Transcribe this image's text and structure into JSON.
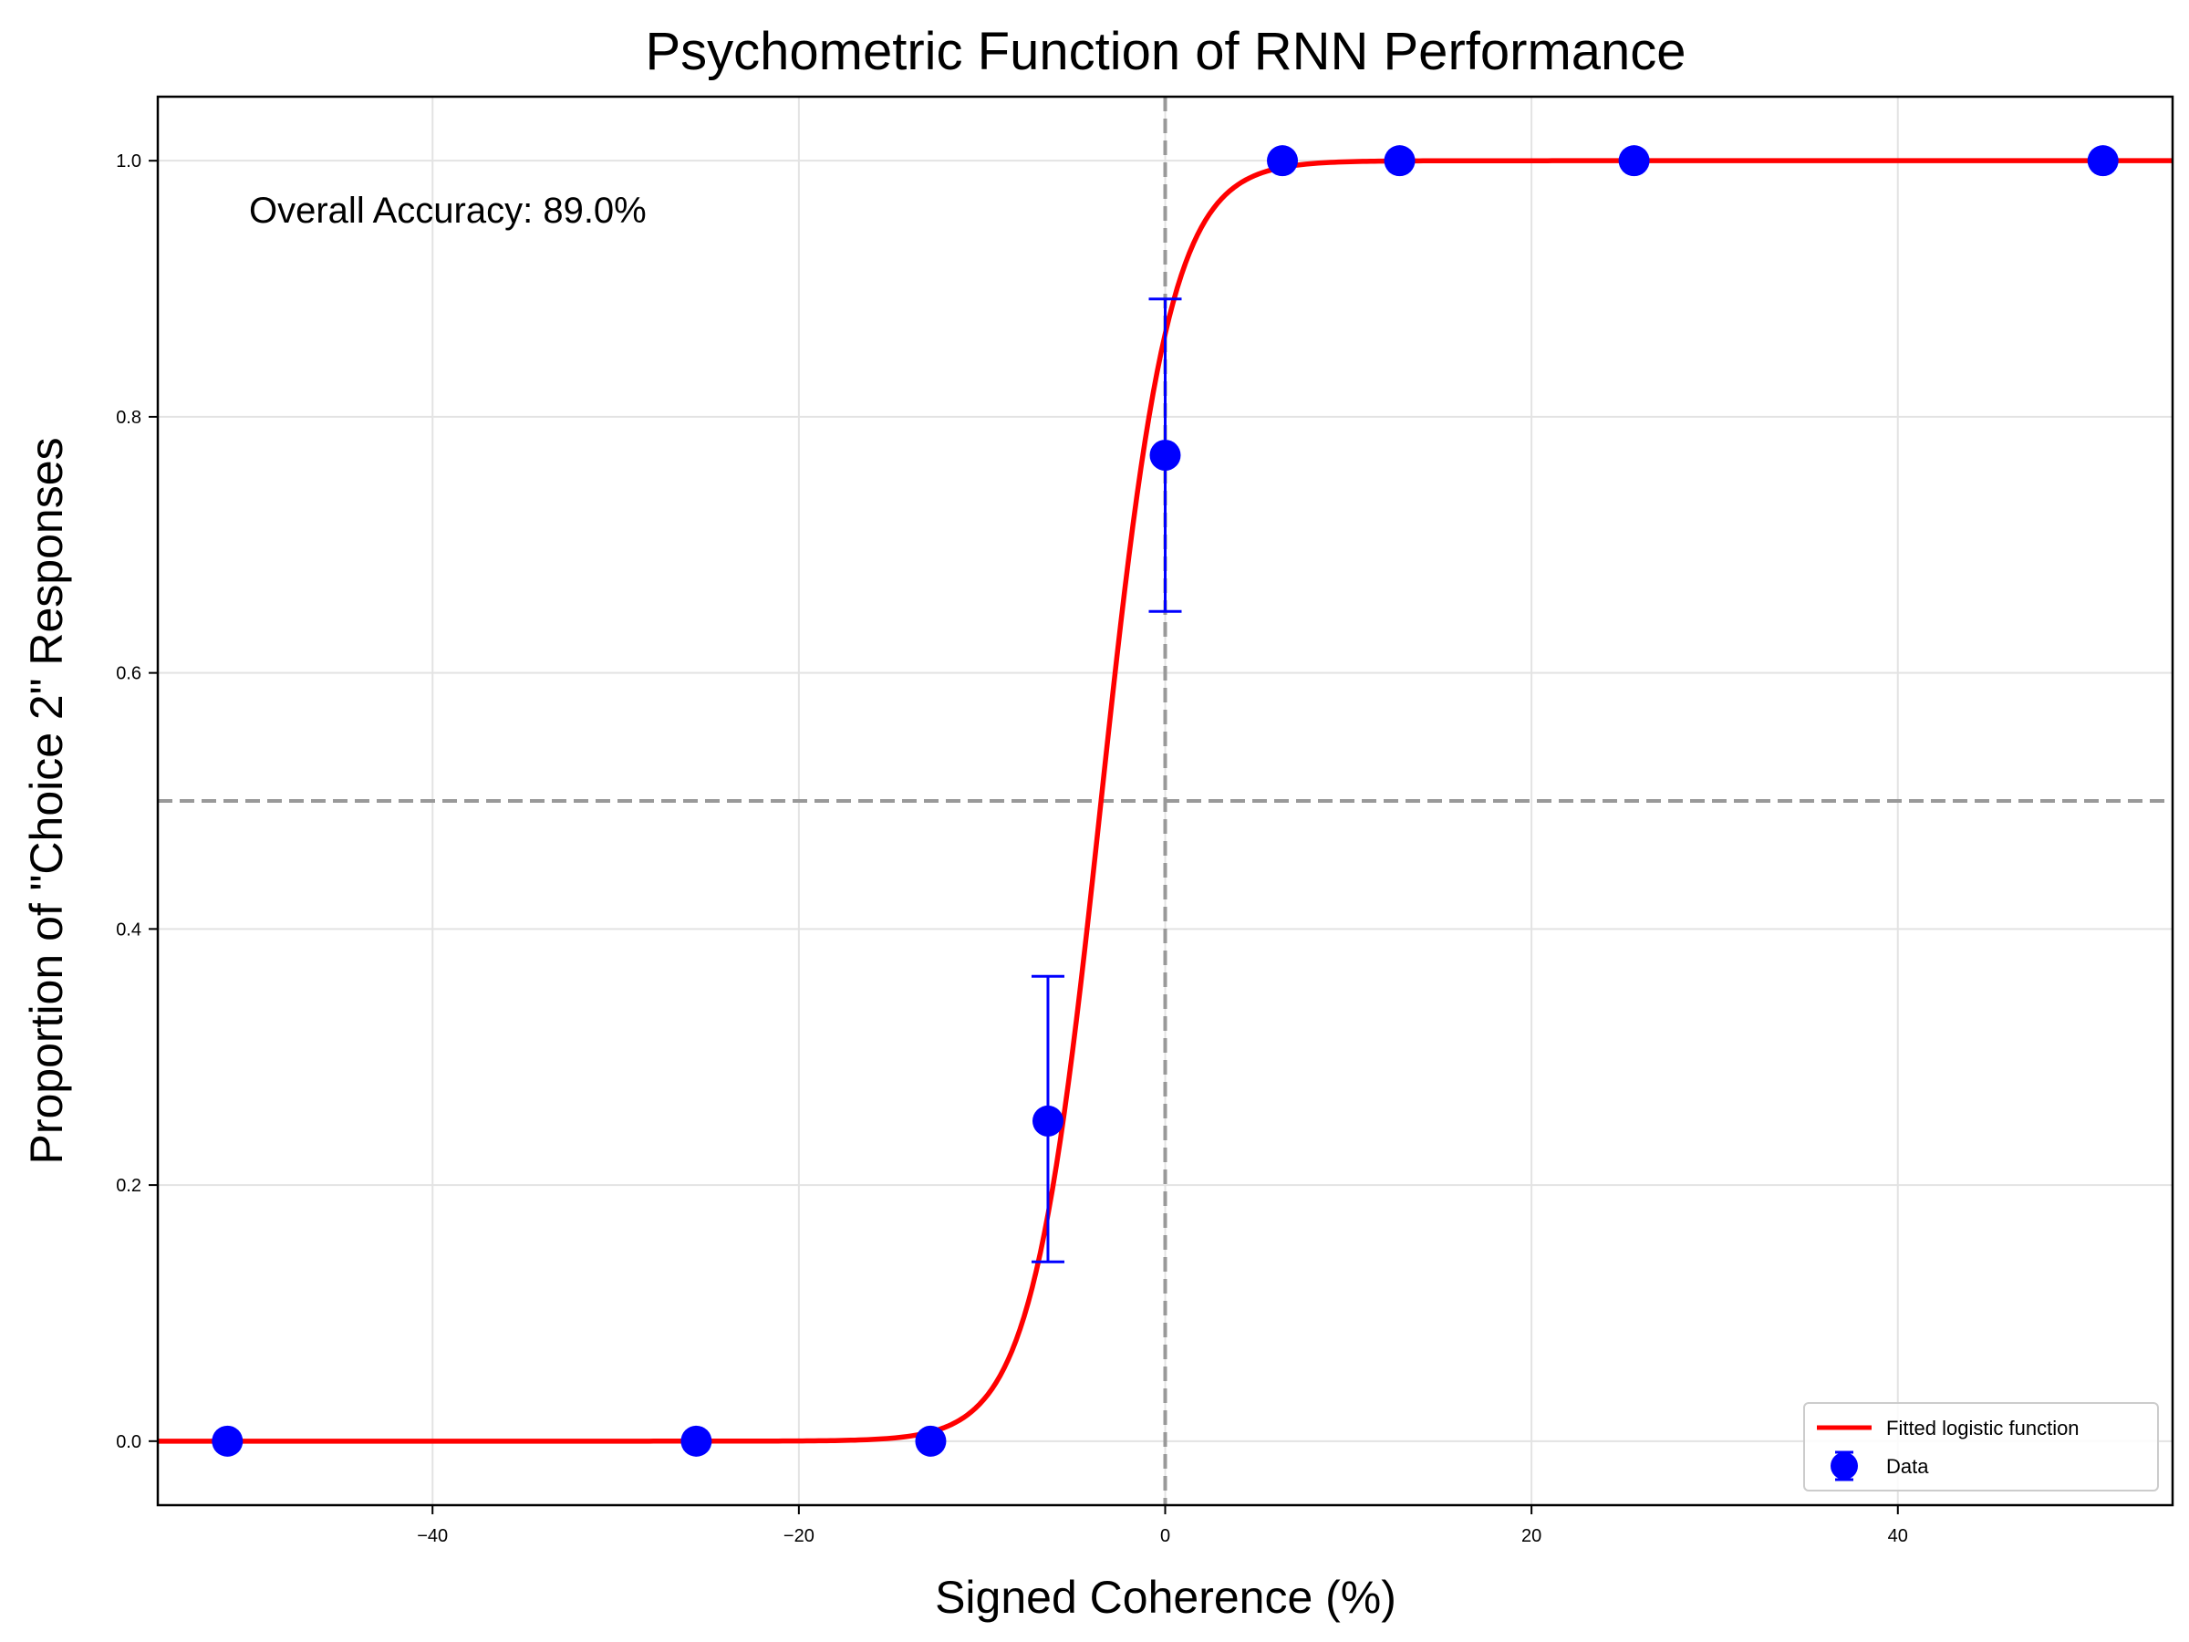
{
  "chart_data": {
    "type": "scatter",
    "title": "Psychometric Function of RNN Performance",
    "xlabel": "Signed Coherence (%)",
    "ylabel": "Proportion of \"Choice 2\" Responses",
    "xlim": [
      -55,
      55
    ],
    "ylim": [
      -0.05,
      1.05
    ],
    "xticks": [
      -40,
      -20,
      0,
      20,
      40
    ],
    "xtick_labels": [
      "−40",
      "−20",
      "0",
      "20",
      "40"
    ],
    "yticks": [
      0.0,
      0.2,
      0.4,
      0.6,
      0.8,
      1.0
    ],
    "ytick_labels": [
      "0.0",
      "0.2",
      "0.4",
      "0.6",
      "0.8",
      "1.0"
    ],
    "grid": true,
    "legend_position": "lower-right",
    "annotation": "Overall Accuracy: 89.0%",
    "reference_lines": {
      "x": 0,
      "y": 0.5
    },
    "series": [
      {
        "name": "Data",
        "kind": "errorbar",
        "color": "#0000ff",
        "points": [
          {
            "x": -51.2,
            "y": 0.0,
            "yerr_low": 0.0,
            "yerr_high": 0.0
          },
          {
            "x": -25.6,
            "y": 0.0,
            "yerr_low": 0.0,
            "yerr_high": 0.0
          },
          {
            "x": -12.8,
            "y": 0.0,
            "yerr_low": 0.0,
            "yerr_high": 0.0
          },
          {
            "x": -6.4,
            "y": 0.25,
            "yerr_low": 0.14,
            "yerr_high": 0.363
          },
          {
            "x": 0.0,
            "y": 0.77,
            "yerr_low": 0.648,
            "yerr_high": 0.892
          },
          {
            "x": 6.4,
            "y": 1.0,
            "yerr_low": 1.0,
            "yerr_high": 1.0
          },
          {
            "x": 12.8,
            "y": 1.0,
            "yerr_low": 1.0,
            "yerr_high": 1.0
          },
          {
            "x": 25.6,
            "y": 1.0,
            "yerr_low": 1.0,
            "yerr_high": 1.0
          },
          {
            "x": 51.2,
            "y": 1.0,
            "yerr_low": 1.0,
            "yerr_high": 1.0
          }
        ]
      },
      {
        "name": "Fitted logistic function",
        "kind": "line",
        "color": "#ff0000",
        "function": "logistic",
        "x0": -3.5,
        "k": 0.53
      }
    ]
  }
}
